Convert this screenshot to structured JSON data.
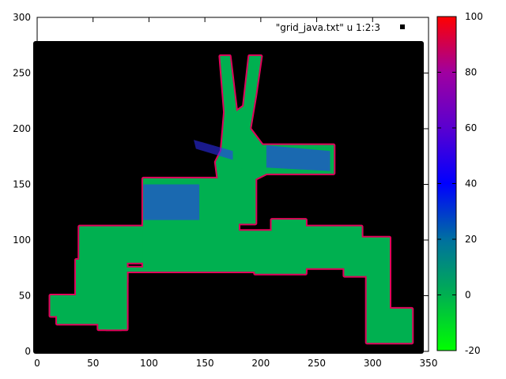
{
  "chart_data": {
    "type": "heatmap",
    "title": "",
    "xlabel": "",
    "ylabel": "",
    "xlim": [
      0,
      350
    ],
    "ylim": [
      0,
      300
    ],
    "xticks": [
      0,
      50,
      100,
      150,
      200,
      250,
      300,
      350
    ],
    "yticks": [
      0,
      50,
      100,
      150,
      200,
      250,
      300
    ],
    "legend": {
      "label": "\"grid_java.txt\" u 1:2:3",
      "placement": "top-right"
    },
    "background_color": "#000000",
    "colorbar": {
      "range": [
        -20,
        100
      ],
      "ticks": [
        -20,
        0,
        20,
        40,
        60,
        80,
        100
      ],
      "stops": [
        {
          "value": -20,
          "color": "#00ff00"
        },
        {
          "value": 0,
          "color": "#00b050"
        },
        {
          "value": 20,
          "color": "#0070a0"
        },
        {
          "value": 40,
          "color": "#0000ff"
        },
        {
          "value": 60,
          "color": "#5a00d0"
        },
        {
          "value": 80,
          "color": "#a000a0"
        },
        {
          "value": 100,
          "color": "#ff0000"
        }
      ]
    },
    "fill_color": "#00b050",
    "edge_color": "#e0005a",
    "blue_color": "#3030ff",
    "regions": [
      {
        "name": "left-wing",
        "polygon": [
          [
            12,
            50
          ],
          [
            35,
            50
          ],
          [
            35,
            82
          ],
          [
            70,
            82
          ],
          [
            70,
            75
          ],
          [
            95,
            75
          ],
          [
            95,
            115
          ],
          [
            175,
            115
          ],
          [
            175,
            73
          ],
          [
            210,
            73
          ],
          [
            210,
            118
          ],
          [
            240,
            118
          ],
          [
            240,
            112
          ],
          [
            290,
            112
          ],
          [
            290,
            102
          ],
          [
            315,
            102
          ],
          [
            315,
            38
          ],
          [
            335,
            38
          ],
          [
            335,
            8
          ],
          [
            295,
            8
          ],
          [
            295,
            68
          ],
          [
            275,
            68
          ],
          [
            275,
            75
          ],
          [
            240,
            75
          ],
          [
            240,
            70
          ],
          [
            195,
            70
          ],
          [
            195,
            72
          ],
          [
            80,
            72
          ],
          [
            80,
            62
          ],
          [
            75,
            62
          ],
          [
            75,
            20
          ],
          [
            55,
            20
          ],
          [
            55,
            25
          ],
          [
            18,
            25
          ],
          [
            18,
            32
          ],
          [
            12,
            32
          ]
        ]
      },
      {
        "name": "lower-left-block",
        "polygon": [
          [
            38,
            112
          ],
          [
            95,
            112
          ],
          [
            95,
            80
          ],
          [
            80,
            80
          ],
          [
            80,
            20
          ],
          [
            62,
            20
          ],
          [
            62,
            55
          ],
          [
            38,
            55
          ]
        ]
      },
      {
        "name": "main-hall",
        "polygon": [
          [
            95,
            115
          ],
          [
            180,
            115
          ],
          [
            180,
            108
          ],
          [
            270,
            108
          ],
          [
            270,
            82
          ],
          [
            240,
            82
          ],
          [
            240,
            72
          ],
          [
            170,
            72
          ],
          [
            170,
            78
          ],
          [
            95,
            78
          ]
        ]
      },
      {
        "name": "center-column",
        "polygon": [
          [
            160,
            115
          ],
          [
            195,
            115
          ],
          [
            195,
            155
          ],
          [
            205,
            160
          ],
          [
            205,
            180
          ],
          [
            190,
            200
          ],
          [
            195,
            230
          ],
          [
            200,
            265
          ],
          [
            190,
            265
          ],
          [
            185,
            220
          ],
          [
            178,
            215
          ],
          [
            172,
            265
          ],
          [
            164,
            265
          ],
          [
            168,
            215
          ],
          [
            165,
            180
          ],
          [
            160,
            170
          ],
          [
            162,
            155
          ]
        ]
      },
      {
        "name": "left-room",
        "polygon": [
          [
            95,
            155
          ],
          [
            165,
            155
          ],
          [
            165,
            115
          ],
          [
            95,
            115
          ]
        ]
      },
      {
        "name": "upper-arm",
        "polygon": [
          [
            175,
            185
          ],
          [
            265,
            185
          ],
          [
            265,
            160
          ],
          [
            195,
            160
          ],
          [
            180,
            165
          ]
        ]
      }
    ],
    "blue_regions": [
      {
        "name": "left-room-shadow",
        "polygon": [
          [
            95,
            150
          ],
          [
            145,
            150
          ],
          [
            145,
            118
          ],
          [
            95,
            118
          ]
        ]
      },
      {
        "name": "upper-arm-shadow",
        "polygon": [
          [
            205,
            185
          ],
          [
            262,
            180
          ],
          [
            262,
            162
          ],
          [
            205,
            165
          ]
        ]
      },
      {
        "name": "far-left-branch",
        "polygon": [
          [
            140,
            190
          ],
          [
            175,
            180
          ],
          [
            175,
            172
          ],
          [
            142,
            182
          ]
        ]
      }
    ]
  }
}
